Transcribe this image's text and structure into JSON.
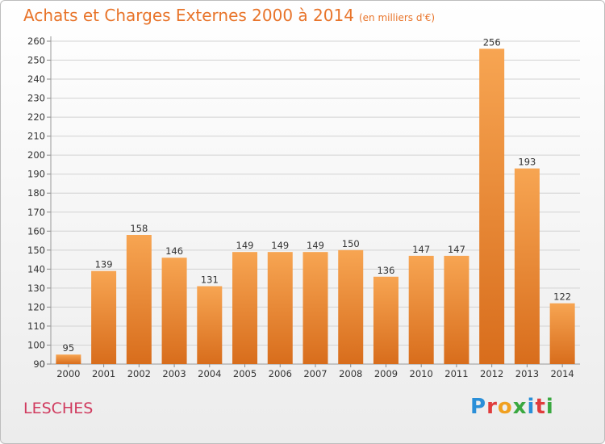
{
  "header": {
    "title": "Achats et Charges Externes 2000 à 2014",
    "subtitle": "(en milliers d'€)"
  },
  "footer": {
    "commune": "LESCHES",
    "logo_text": "Proxiti"
  },
  "colors": {
    "title": "#e8742a",
    "commune": "#d03a5e",
    "bar_top": "#f7a552",
    "bar_bottom": "#d86d1c",
    "logo": [
      "#2a8fd8",
      "#e03c3c",
      "#f0a020",
      "#3aa840",
      "#2a8fd8",
      "#e03c3c",
      "#3aa840"
    ]
  },
  "chart_data": {
    "type": "bar",
    "title": "Achats et Charges Externes 2000 à 2014",
    "subtitle": "(en milliers d'€)",
    "categories": [
      "2000",
      "2001",
      "2002",
      "2003",
      "2004",
      "2005",
      "2006",
      "2007",
      "2008",
      "2009",
      "2010",
      "2011",
      "2012",
      "2013",
      "2014"
    ],
    "values": [
      95,
      139,
      158,
      146,
      131,
      149,
      149,
      149,
      150,
      136,
      147,
      147,
      256,
      193,
      122
    ],
    "value_labels": [
      "95",
      "139",
      "158",
      "146",
      "131",
      "149",
      "149",
      "149",
      "150",
      "136",
      "147",
      "147",
      "256",
      "193",
      "122"
    ],
    "yticks": [
      "90",
      "100",
      "110",
      "120",
      "130",
      "140",
      "150",
      "160",
      "170",
      "180",
      "190",
      "200",
      "210",
      "220",
      "230",
      "240",
      "250",
      "260"
    ],
    "ylim": [
      90,
      260
    ],
    "grid": true,
    "legend": "none"
  }
}
